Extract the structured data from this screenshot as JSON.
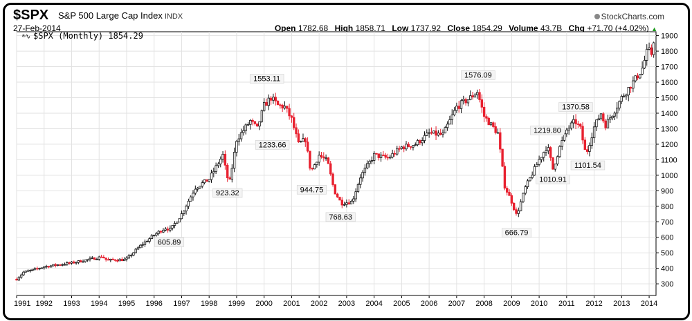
{
  "header": {
    "symbol": "$SPX",
    "description": "S&P 500 Large Cap Index",
    "exchange": "INDX",
    "date": "27-Feb-2014",
    "brand": "StockCharts.com",
    "open_label": "Open",
    "open_value": "1782.68",
    "high_label": "High",
    "high_value": "1858.71",
    "low_label": "Low",
    "low_value": "1737.92",
    "close_label": "Close",
    "close_value": "1854.29",
    "volume_label": "Volume",
    "volume_value": "43.7B",
    "chg_label": "Chg",
    "chg_value": "+71.70 (+4.02%)"
  },
  "legend_label": "$SPX (Monthly) 1854.29",
  "chart_data": {
    "type": "candlestick",
    "interval": "monthly",
    "xlabel": "",
    "ylabel": "",
    "xlim": [
      1991.0,
      2014.25
    ],
    "ylim": [
      225,
      1925
    ],
    "grid": true,
    "y_axis_position": "right",
    "y_ticks": [
      300,
      400,
      500,
      600,
      700,
      800,
      900,
      1000,
      1100,
      1200,
      1300,
      1400,
      1500,
      1600,
      1700,
      1800,
      1900
    ],
    "x_ticks": [
      "1991",
      "1992",
      "1993",
      "1994",
      "1995",
      "1996",
      "1997",
      "1998",
      "1999",
      "2000",
      "2001",
      "2002",
      "2003",
      "2004",
      "2005",
      "2006",
      "2007",
      "2008",
      "2009",
      "2010",
      "2011",
      "2012",
      "2013",
      "2014"
    ],
    "up_color": "#111111",
    "down_color": "#e8202f",
    "price_path": [
      [
        1991.0,
        330
      ],
      [
        1991.25,
        375
      ],
      [
        1991.5,
        385
      ],
      [
        1992.0,
        410
      ],
      [
        1993.0,
        435
      ],
      [
        1994.0,
        470
      ],
      [
        1994.1,
        478
      ],
      [
        1994.3,
        450
      ],
      [
        1994.5,
        455
      ],
      [
        1994.9,
        455
      ],
      [
        1995.0,
        460
      ],
      [
        1995.5,
        545
      ],
      [
        1996.0,
        615
      ],
      [
        1996.4,
        660
      ],
      [
        1996.6,
        650
      ],
      [
        1997.0,
        750
      ],
      [
        1997.5,
        920
      ],
      [
        1998.0,
        975
      ],
      [
        1998.5,
        1130
      ],
      [
        1998.65,
        990
      ],
      [
        1998.75,
        960
      ],
      [
        1999.0,
        1230
      ],
      [
        1999.5,
        1350
      ],
      [
        1999.75,
        1300
      ],
      [
        2000.0,
        1450
      ],
      [
        2000.25,
        1500
      ],
      [
        2000.5,
        1450
      ],
      [
        2000.75,
        1440
      ],
      [
        2001.0,
        1360
      ],
      [
        2001.25,
        1200
      ],
      [
        2001.5,
        1230
      ],
      [
        2001.7,
        1020
      ],
      [
        2002.0,
        1130
      ],
      [
        2002.3,
        1090
      ],
      [
        2002.55,
        900
      ],
      [
        2002.8,
        820
      ],
      [
        2003.2,
        830
      ],
      [
        2003.5,
        990
      ],
      [
        2004.0,
        1130
      ],
      [
        2004.5,
        1110
      ],
      [
        2005.0,
        1180
      ],
      [
        2005.5,
        1200
      ],
      [
        2006.0,
        1270
      ],
      [
        2006.5,
        1260
      ],
      [
        2007.0,
        1440
      ],
      [
        2007.5,
        1500
      ],
      [
        2007.75,
        1540
      ],
      [
        2008.0,
        1380
      ],
      [
        2008.5,
        1270
      ],
      [
        2008.75,
        930
      ],
      [
        2009.0,
        830
      ],
      [
        2009.18,
        740
      ],
      [
        2009.5,
        920
      ],
      [
        2010.0,
        1100
      ],
      [
        2010.3,
        1190
      ],
      [
        2010.5,
        1040
      ],
      [
        2010.75,
        1180
      ],
      [
        2011.0,
        1290
      ],
      [
        2011.3,
        1350
      ],
      [
        2011.5,
        1300
      ],
      [
        2011.7,
        1130
      ],
      [
        2012.0,
        1310
      ],
      [
        2012.25,
        1400
      ],
      [
        2012.4,
        1320
      ],
      [
        2012.75,
        1420
      ],
      [
        2013.0,
        1500
      ],
      [
        2013.5,
        1620
      ],
      [
        2013.75,
        1690
      ],
      [
        2013.95,
        1810
      ],
      [
        2014.08,
        1780
      ],
      [
        2014.15,
        1854
      ]
    ],
    "annotations": [
      {
        "x": 1996.55,
        "y": 605.89,
        "label": "605.89",
        "position": "below"
      },
      {
        "x": 1998.67,
        "y": 923.32,
        "label": "923.32",
        "position": "below"
      },
      {
        "x": 2000.1,
        "y": 1553.11,
        "label": "1553.11",
        "position": "above"
      },
      {
        "x": 2000.3,
        "y": 1233.66,
        "label": "1233.66",
        "position": "below"
      },
      {
        "x": 2001.73,
        "y": 944.75,
        "label": "944.75",
        "position": "below"
      },
      {
        "x": 2002.78,
        "y": 768.63,
        "label": "768.63",
        "position": "below"
      },
      {
        "x": 2007.78,
        "y": 1576.09,
        "label": "1576.09",
        "position": "above"
      },
      {
        "x": 2009.18,
        "y": 666.79,
        "label": "666.79",
        "position": "below"
      },
      {
        "x": 2010.3,
        "y": 1219.8,
        "label": "1219.80",
        "position": "above"
      },
      {
        "x": 2010.5,
        "y": 1010.91,
        "label": "1010.91",
        "position": "below"
      },
      {
        "x": 2011.33,
        "y": 1370.58,
        "label": "1370.58",
        "position": "above"
      },
      {
        "x": 2011.77,
        "y": 1101.54,
        "label": "1101.54",
        "position": "below"
      }
    ]
  }
}
